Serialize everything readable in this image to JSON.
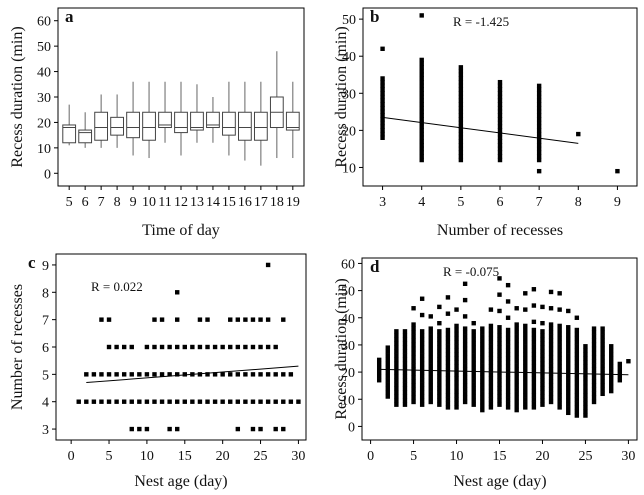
{
  "chart_data": [
    {
      "panel_label": "a",
      "type": "box",
      "xlabel": "Time of day",
      "ylabel": "Recess duration (min)",
      "ylim": [
        -5,
        65
      ],
      "yticks": [
        0,
        10,
        20,
        30,
        40,
        50,
        60
      ],
      "categories": [
        "5",
        "6",
        "7",
        "8",
        "9",
        "10",
        "11",
        "12",
        "13",
        "14",
        "15",
        "16",
        "17",
        "18",
        "19"
      ],
      "boxes": [
        {
          "low": 11,
          "q1": 12,
          "median": 18,
          "q3": 19,
          "high": 27
        },
        {
          "low": 10,
          "q1": 12,
          "median": 16,
          "q3": 17,
          "high": 24
        },
        {
          "low": 10,
          "q1": 13,
          "median": 18,
          "q3": 24,
          "high": 31
        },
        {
          "low": 10,
          "q1": 15,
          "median": 18,
          "q3": 22,
          "high": 31
        },
        {
          "low": 7,
          "q1": 14,
          "median": 18,
          "q3": 24,
          "high": 36
        },
        {
          "low": 6,
          "q1": 13,
          "median": 18,
          "q3": 24,
          "high": 36
        },
        {
          "low": 12,
          "q1": 18,
          "median": 19,
          "q3": 24,
          "high": 36
        },
        {
          "low": 7,
          "q1": 16,
          "median": 18,
          "q3": 24,
          "high": 36
        },
        {
          "low": 12,
          "q1": 17,
          "median": 18,
          "q3": 24,
          "high": 35
        },
        {
          "low": 12,
          "q1": 18,
          "median": 19,
          "q3": 24,
          "high": 30
        },
        {
          "low": 7,
          "q1": 15,
          "median": 18,
          "q3": 24,
          "high": 36
        },
        {
          "low": 5,
          "q1": 13,
          "median": 18,
          "q3": 24,
          "high": 36
        },
        {
          "low": 3,
          "q1": 13,
          "median": 18,
          "q3": 24,
          "high": 36
        },
        {
          "low": 6,
          "q1": 18,
          "median": 24,
          "q3": 30,
          "high": 48
        },
        {
          "low": 6,
          "q1": 17,
          "median": 18,
          "q3": 24,
          "high": 36
        }
      ]
    },
    {
      "panel_label": "b",
      "type": "scatter",
      "xlabel": "Number of recesses",
      "ylabel": "Recess duration (min)",
      "annotation": "R = -1.425",
      "xlim": [
        2.5,
        9.5
      ],
      "ylim": [
        5,
        53
      ],
      "xticks": [
        3,
        4,
        5,
        6,
        7,
        8,
        9
      ],
      "yticks": [
        10,
        20,
        30,
        40,
        50
      ],
      "columns": [
        {
          "x": 3,
          "from": 18,
          "to": 34,
          "extra": [
            42
          ]
        },
        {
          "x": 4,
          "from": 12,
          "to": 39,
          "extra": [
            51
          ]
        },
        {
          "x": 5,
          "from": 12,
          "to": 37,
          "extra": []
        },
        {
          "x": 6,
          "from": 12,
          "to": 33,
          "extra": []
        },
        {
          "x": 7,
          "from": 12,
          "to": 32,
          "extra": [
            9
          ]
        },
        {
          "x": 8,
          "from": 19,
          "to": 19,
          "extra": []
        },
        {
          "x": 9,
          "from": 9,
          "to": 9,
          "extra": []
        }
      ],
      "trend": {
        "x": [
          3,
          8
        ],
        "y": [
          23.5,
          16.5
        ]
      }
    },
    {
      "panel_label": "c",
      "type": "scatter",
      "xlabel": "Nest age (day)",
      "ylabel": "Number of recesses",
      "annotation": "R = 0.022",
      "xlim": [
        -2,
        31
      ],
      "ylim": [
        2.6,
        9.4
      ],
      "xticks": [
        0,
        5,
        10,
        15,
        20,
        25,
        30
      ],
      "yticks": [
        3,
        4,
        5,
        6,
        7,
        8,
        9
      ],
      "points_by_y": {
        "4": [
          1,
          2,
          3,
          4,
          5,
          6,
          7,
          8,
          9,
          10,
          11,
          12,
          13,
          14,
          15,
          16,
          17,
          18,
          19,
          20,
          21,
          22,
          23,
          24,
          25,
          26,
          27,
          28,
          29,
          30
        ],
        "5": [
          2,
          3,
          4,
          5,
          6,
          7,
          8,
          9,
          10,
          11,
          12,
          13,
          14,
          15,
          16,
          17,
          18,
          19,
          20,
          21,
          22,
          23,
          24,
          25,
          26,
          27,
          28,
          29
        ],
        "6": [
          5,
          6,
          7,
          8,
          10,
          11,
          12,
          13,
          14,
          15,
          16,
          17,
          18,
          19,
          20,
          21,
          22,
          23,
          24,
          25,
          26,
          27
        ],
        "7": [
          4,
          5,
          11,
          12,
          14,
          17,
          18,
          21,
          22,
          23,
          24,
          25,
          26,
          28
        ],
        "3": [
          8,
          9,
          10,
          13,
          14,
          22,
          24,
          25,
          27,
          28
        ],
        "8": [
          14
        ],
        "9": [
          26
        ]
      },
      "trend": {
        "x": [
          2,
          30
        ],
        "y": [
          4.7,
          5.3
        ]
      }
    },
    {
      "panel_label": "d",
      "type": "scatter",
      "xlabel": "Nest age (day)",
      "ylabel": "Recess duration (min)",
      "annotation": "R = -0.075",
      "xlim": [
        -1,
        31
      ],
      "ylim": [
        -5,
        62
      ],
      "xticks": [
        0,
        5,
        10,
        15,
        20,
        25,
        30
      ],
      "yticks": [
        0,
        10,
        20,
        30,
        40,
        50,
        60
      ],
      "columns": [
        {
          "x": 1,
          "from": 17,
          "to": 25
        },
        {
          "x": 2,
          "from": 11,
          "to": 30
        },
        {
          "x": 3,
          "from": 8,
          "to": 36
        },
        {
          "x": 4,
          "from": 8,
          "to": 36
        },
        {
          "x": 5,
          "from": 9,
          "to": 45
        },
        {
          "x": 6,
          "from": 8,
          "to": 48
        },
        {
          "x": 7,
          "from": 9,
          "to": 42
        },
        {
          "x": 8,
          "from": 8,
          "to": 48
        },
        {
          "x": 9,
          "from": 7,
          "to": 48
        },
        {
          "x": 10,
          "from": 7,
          "to": 48
        },
        {
          "x": 11,
          "from": 9,
          "to": 54
        },
        {
          "x": 12,
          "from": 8,
          "to": 42
        },
        {
          "x": 13,
          "from": 6,
          "to": 36
        },
        {
          "x": 14,
          "from": 7,
          "to": 48
        },
        {
          "x": 15,
          "from": 8,
          "to": 58
        },
        {
          "x": 16,
          "from": 7,
          "to": 54
        },
        {
          "x": 17,
          "from": 6,
          "to": 48
        },
        {
          "x": 18,
          "from": 7,
          "to": 54
        },
        {
          "x": 19,
          "from": 7,
          "to": 54
        },
        {
          "x": 20,
          "from": 8,
          "to": 48
        },
        {
          "x": 21,
          "from": 9,
          "to": 50
        },
        {
          "x": 22,
          "from": 7,
          "to": 54
        },
        {
          "x": 23,
          "from": 5,
          "to": 48
        },
        {
          "x": 24,
          "from": 4,
          "to": 42
        },
        {
          "x": 25,
          "from": 4,
          "to": 30
        },
        {
          "x": 26,
          "from": 9,
          "to": 36
        },
        {
          "x": 27,
          "from": 12,
          "to": 36
        },
        {
          "x": 28,
          "from": 13,
          "to": 30
        },
        {
          "x": 29,
          "from": 17,
          "to": 24
        },
        {
          "x": 30,
          "from": 24,
          "to": 24
        }
      ],
      "trend": {
        "x": [
          1,
          30
        ],
        "y": [
          21,
          19
        ]
      }
    }
  ]
}
